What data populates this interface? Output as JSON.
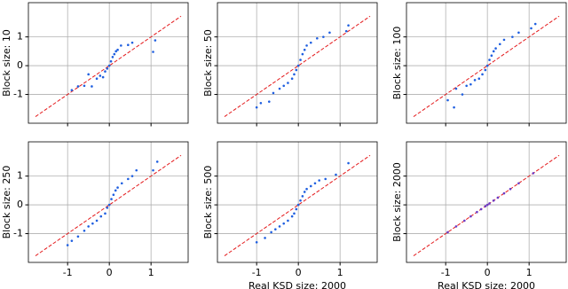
{
  "chart_data": [
    {
      "type": "scatter",
      "ylabel": "Block size: 10",
      "color": "#1f5fe0",
      "diagonal_color": "#e41a1c",
      "diagonal_range": [
        -1.77,
        1.72
      ],
      "xlim": [
        -1.94,
        1.89
      ],
      "ylim": [
        -2,
        2.19
      ],
      "xticks": [
        -1,
        0,
        1
      ],
      "yticks": [
        -1,
        0,
        1
      ],
      "xtick_labels": false,
      "ytick_labels": true,
      "grid": true,
      "x": [
        -0.9,
        -0.75,
        -0.6,
        -0.5,
        -0.42,
        -0.3,
        -0.22,
        -0.15,
        -0.1,
        -0.05,
        0,
        0.04,
        0.08,
        0.12,
        0.16,
        0.2,
        0.28,
        0.45,
        0.55,
        1.05,
        1.1
      ],
      "values": [
        -0.85,
        -0.72,
        -0.7,
        -0.3,
        -0.72,
        -0.45,
        -0.35,
        -0.4,
        -0.2,
        -0.1,
        0,
        0.15,
        0.3,
        0.4,
        0.5,
        0.55,
        0.7,
        0.72,
        0.8,
        0.48,
        0.88
      ]
    },
    {
      "type": "scatter",
      "ylabel": "Block size: 50",
      "color": "#1f5fe0",
      "diagonal_color": "#e41a1c",
      "diagonal_range": [
        -1.77,
        1.72
      ],
      "xlim": [
        -1.94,
        1.89
      ],
      "ylim": [
        -2,
        2.19
      ],
      "xticks": [
        -1,
        0,
        1
      ],
      "yticks": [
        -1,
        0,
        1
      ],
      "xtick_labels": false,
      "ytick_labels": false,
      "grid": true,
      "x": [
        -1.0,
        -0.9,
        -0.7,
        -0.6,
        -0.45,
        -0.35,
        -0.25,
        -0.15,
        -0.1,
        -0.05,
        0,
        0.05,
        0.1,
        0.15,
        0.2,
        0.3,
        0.45,
        0.6,
        0.75,
        1.15,
        1.2
      ],
      "values": [
        -1.45,
        -1.3,
        -1.25,
        -0.95,
        -0.8,
        -0.7,
        -0.6,
        -0.45,
        -0.3,
        -0.15,
        0,
        0.2,
        0.4,
        0.55,
        0.7,
        0.8,
        0.95,
        1.0,
        1.15,
        1.2,
        1.4
      ]
    },
    {
      "type": "scatter",
      "ylabel": "Block size: 100",
      "color": "#1f5fe0",
      "diagonal_color": "#e41a1c",
      "diagonal_range": [
        -1.77,
        1.72
      ],
      "xlim": [
        -1.94,
        1.89
      ],
      "ylim": [
        -2,
        2.19
      ],
      "xticks": [
        -1,
        0,
        1
      ],
      "yticks": [
        -1,
        0,
        1
      ],
      "xtick_labels": false,
      "ytick_labels": false,
      "grid": true,
      "x": [
        -0.95,
        -0.8,
        -0.75,
        -0.6,
        -0.5,
        -0.4,
        -0.3,
        -0.2,
        -0.12,
        -0.05,
        0,
        0.05,
        0.1,
        0.15,
        0.2,
        0.3,
        0.4,
        0.6,
        0.75,
        1.05,
        1.15
      ],
      "values": [
        -1.2,
        -1.45,
        -0.8,
        -1.0,
        -0.7,
        -0.65,
        -0.5,
        -0.45,
        -0.3,
        -0.15,
        0,
        0.2,
        0.35,
        0.5,
        0.6,
        0.75,
        0.9,
        1.0,
        1.15,
        1.3,
        1.45
      ]
    },
    {
      "type": "scatter",
      "ylabel": "Block size: 250",
      "color": "#1f5fe0",
      "diagonal_color": "#e41a1c",
      "diagonal_range": [
        -1.77,
        1.72
      ],
      "xlim": [
        -1.94,
        1.89
      ],
      "ylim": [
        -2,
        2.19
      ],
      "xticks": [
        -1,
        0,
        1
      ],
      "yticks": [
        -1,
        0,
        1
      ],
      "xtick_labels": true,
      "ytick_labels": true,
      "grid": true,
      "x": [
        -1.0,
        -0.9,
        -0.75,
        -0.6,
        -0.5,
        -0.4,
        -0.3,
        -0.2,
        -0.1,
        -0.05,
        0,
        0.05,
        0.1,
        0.15,
        0.2,
        0.3,
        0.45,
        0.55,
        0.65,
        1.05,
        1.15
      ],
      "values": [
        -1.4,
        -1.25,
        -1.1,
        -0.9,
        -0.75,
        -0.65,
        -0.55,
        -0.4,
        -0.3,
        -0.1,
        0,
        0.2,
        0.35,
        0.5,
        0.6,
        0.75,
        0.9,
        1.0,
        1.2,
        1.2,
        1.5
      ]
    },
    {
      "type": "scatter",
      "ylabel": "Block size: 500",
      "xlabel": "Real KSD size: 2000",
      "color": "#1f5fe0",
      "diagonal_color": "#e41a1c",
      "diagonal_range": [
        -1.77,
        1.72
      ],
      "xlim": [
        -1.94,
        1.89
      ],
      "ylim": [
        -2,
        2.19
      ],
      "xticks": [
        -1,
        0,
        1
      ],
      "yticks": [
        -1,
        0,
        1
      ],
      "xtick_labels": true,
      "ytick_labels": false,
      "grid": true,
      "x": [
        -1.0,
        -0.8,
        -0.65,
        -0.55,
        -0.45,
        -0.35,
        -0.25,
        -0.15,
        -0.1,
        -0.05,
        0,
        0.05,
        0.1,
        0.15,
        0.2,
        0.3,
        0.4,
        0.5,
        0.65,
        0.9,
        1.2
      ],
      "values": [
        -1.3,
        -1.15,
        -0.95,
        -0.85,
        -0.75,
        -0.65,
        -0.55,
        -0.4,
        -0.3,
        -0.15,
        0,
        0.15,
        0.3,
        0.45,
        0.55,
        0.65,
        0.75,
        0.85,
        0.9,
        1.05,
        1.45
      ]
    },
    {
      "type": "scatter",
      "ylabel": "Block size: 2000",
      "xlabel": "Real KSD size: 2000",
      "color": "#6a3cc8",
      "diagonal_color": "#e41a1c",
      "diagonal_range": [
        -1.77,
        1.72
      ],
      "xlim": [
        -1.94,
        1.89
      ],
      "ylim": [
        -2,
        2.19
      ],
      "xticks": [
        -1,
        0,
        1
      ],
      "yticks": [
        -1,
        0,
        1
      ],
      "xtick_labels": true,
      "ytick_labels": false,
      "grid": true,
      "x": [
        -0.95,
        -0.75,
        -0.55,
        -0.4,
        -0.25,
        -0.15,
        -0.05,
        0,
        0.05,
        0.15,
        0.25,
        0.4,
        0.55,
        0.75,
        1.1
      ],
      "values": [
        -0.95,
        -0.75,
        -0.55,
        -0.4,
        -0.25,
        -0.15,
        -0.05,
        0,
        0.05,
        0.15,
        0.25,
        0.4,
        0.55,
        0.75,
        1.1
      ]
    }
  ]
}
